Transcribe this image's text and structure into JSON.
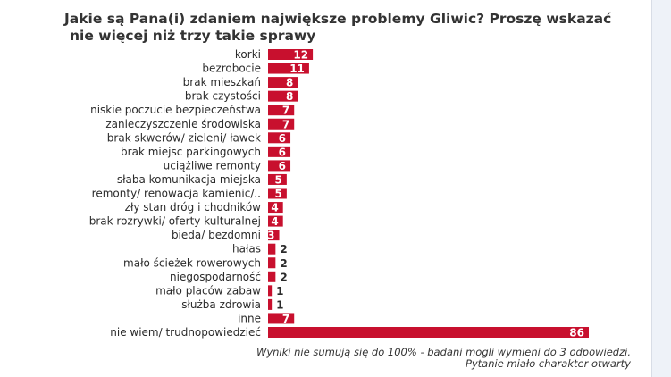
{
  "title_line1": "Jakie są Pana(i) zdaniem największe problemy Gliwic? Proszę wskazać",
  "title_line2": "nie więcej niż trzy takie sprawy",
  "footnote_line1": "Wyniki nie sumują się do 100% - badani mogli  wymieni do 3 odpowiedzi.",
  "footnote_line2": "Pytanie miało charakter otwarty",
  "colors": {
    "bar": "#c8102e",
    "text": "#2b2b2b"
  },
  "chart_data": {
    "type": "bar",
    "orientation": "horizontal",
    "title": "Jakie są Pana(i) zdaniem największe problemy Gliwic? Proszę wskazać nie więcej niż trzy takie sprawy",
    "xlim": [
      0,
      86
    ],
    "categories": [
      "korki",
      "bezrobocie",
      "brak mieszkań",
      "brak czystości",
      "niskie poczucie bezpieczeństwa",
      "zanieczyszczenie środowiska",
      "brak skwerów/ zieleni/ ławek",
      "brak miejsc parkingowych",
      "uciążliwe remonty",
      "słaba komunikacja miejska",
      "remonty/ renowacja kamienic/..",
      "zły stan dróg i chodników",
      "brak rozrywki/ oferty kulturalnej",
      "bieda/ bezdomni",
      "hałas",
      "mało ścieżek rowerowych",
      "niegospodarność",
      "mało placów zabaw",
      "służba zdrowia",
      "inne",
      "nie wiem/ trudnopowiedzieć"
    ],
    "values": [
      12,
      11,
      8,
      8,
      7,
      7,
      6,
      6,
      6,
      5,
      5,
      4,
      4,
      3,
      2,
      2,
      2,
      1,
      1,
      7,
      86
    ],
    "value_labels": [
      "12",
      "11",
      "8",
      "8",
      "7",
      "7",
      "6",
      "6",
      "6",
      "5",
      "5",
      "4",
      "4",
      "3",
      "2",
      "2",
      "2",
      "1",
      "1",
      "7",
      "86"
    ]
  }
}
